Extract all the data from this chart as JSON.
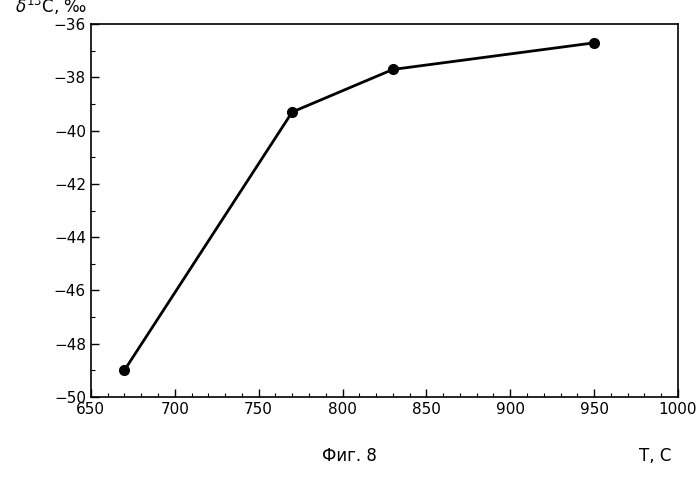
{
  "x": [
    670,
    770,
    830,
    950
  ],
  "y": [
    -49.0,
    -39.3,
    -37.7,
    -36.7
  ],
  "xlim": [
    650,
    1000
  ],
  "ylim": [
    -50,
    -36
  ],
  "xticks": [
    650,
    700,
    750,
    800,
    850,
    900,
    950,
    1000
  ],
  "yticks": [
    -50,
    -48,
    -46,
    -44,
    -42,
    -40,
    -38,
    -36
  ],
  "xlabel": "T, C",
  "ylabel_text": "δ¹³C, ‰",
  "caption": "Фиг. 8",
  "line_color": "#000000",
  "marker_color": "#000000",
  "marker_size": 7,
  "line_width": 2,
  "bg_color": "#ffffff",
  "tick_fontsize": 11,
  "label_fontsize": 12
}
